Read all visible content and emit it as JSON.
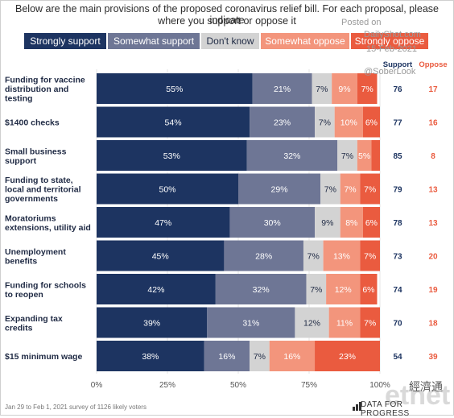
{
  "title_lines": [
    "Below are the main provisions of the proposed coronavirus relief bill. For each proposal, please indicate",
    "where you support or oppose it"
  ],
  "watermark": {
    "posted_on": "Posted on",
    "site": "DailyShot.com",
    "date": "15-Feb-2021",
    "handle": "@SoberLook"
  },
  "colors": {
    "strongly_support": "#1d3461",
    "somewhat_support": "#6e7695",
    "dont_know": "#d3d3d3",
    "somewhat_oppose": "#f3957c",
    "strongly_oppose": "#ea5b3f",
    "support_text": "#1d3461",
    "oppose_text": "#ea5b3f"
  },
  "footnote": "Jan 29 to Feb 1, 2021 survey of 1126 likely voters",
  "brand": "DATA FOR PROGRESS",
  "etnet_logo": "etnet",
  "etnet_cn": "經濟通",
  "chart_data": {
    "type": "bar",
    "orientation": "horizontal",
    "stacked": true,
    "legend": [
      "Strongly support",
      "Somewhat support",
      "Don't know",
      "Somewhat oppose",
      "Strongly oppose"
    ],
    "legend_placement": "top",
    "categories": [
      "Funding for vaccine distribution and testing",
      "$1400 checks",
      "Small business support",
      "Funding to state, local and territorial governments",
      "Moratoriums extensions, utility aid",
      "Unemployment benefits",
      "Funding for schools to reopen",
      "Expanding tax credits",
      "$15 minimum wage"
    ],
    "category_lines": [
      [
        "Funding for vaccine",
        "distribution and",
        "testing"
      ],
      [
        "$1400 checks"
      ],
      [
        "Small business",
        "support"
      ],
      [
        "Funding to state,",
        "local and territorial",
        "governments"
      ],
      [
        "Moratoriums",
        "extensions, utility aid"
      ],
      [
        "Unemployment",
        "benefits"
      ],
      [
        "Funding for schools",
        "to reopen"
      ],
      [
        "Expanding tax",
        "credits"
      ],
      [
        "$15 minimum wage"
      ]
    ],
    "series": [
      {
        "name": "Strongly support",
        "values": [
          55,
          54,
          53,
          50,
          47,
          45,
          42,
          39,
          38
        ]
      },
      {
        "name": "Somewhat support",
        "values": [
          21,
          23,
          32,
          29,
          30,
          28,
          32,
          31,
          16
        ]
      },
      {
        "name": "Don't know",
        "values": [
          7,
          7,
          7,
          7,
          9,
          7,
          7,
          12,
          7
        ]
      },
      {
        "name": "Somewhat oppose",
        "values": [
          9,
          10,
          5,
          7,
          8,
          13,
          12,
          11,
          16
        ]
      },
      {
        "name": "Strongly oppose",
        "values": [
          7,
          6,
          3,
          7,
          6,
          7,
          6,
          7,
          23
        ]
      }
    ],
    "labels": [
      [
        "55%",
        "21%",
        "7%",
        "9%",
        "7%"
      ],
      [
        "54%",
        "23%",
        "7%",
        "10%",
        "6%"
      ],
      [
        "53%",
        "32%",
        "7%",
        "5%",
        ""
      ],
      [
        "50%",
        "29%",
        "7%",
        "7%",
        "7%"
      ],
      [
        "47%",
        "30%",
        "9%",
        "8%",
        "6%"
      ],
      [
        "45%",
        "28%",
        "7%",
        "13%",
        "7%"
      ],
      [
        "42%",
        "32%",
        "7%",
        "12%",
        "6%"
      ],
      [
        "39%",
        "31%",
        "12%",
        "11%",
        "7%"
      ],
      [
        "38%",
        "16%",
        "7%",
        "16%",
        "23%"
      ]
    ],
    "support_header": "Support",
    "oppose_header": "Oppose",
    "support": [
      76,
      77,
      85,
      79,
      78,
      73,
      74,
      70,
      54
    ],
    "oppose": [
      17,
      16,
      8,
      13,
      13,
      20,
      19,
      18,
      39
    ],
    "xlim": [
      0,
      100
    ],
    "xticks": [
      "0%",
      "25%",
      "50%",
      "75%",
      "100%"
    ],
    "grid": true
  }
}
